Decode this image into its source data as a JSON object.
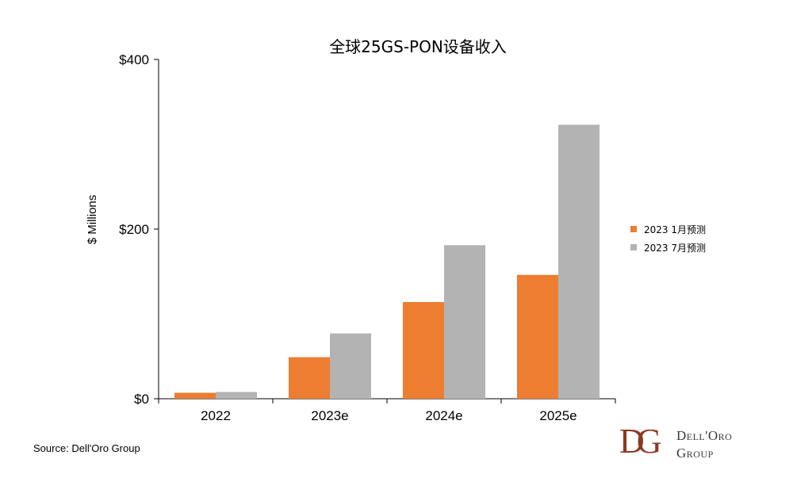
{
  "chart_data": {
    "type": "bar",
    "title": "全球25GS-PON设备收入",
    "ylabel": "$ Millions",
    "categories": [
      "2022",
      "2023e",
      "2024e",
      "2025e"
    ],
    "series": [
      {
        "name": "2023 1月预测",
        "color": "#ed7d31",
        "values": [
          7,
          49,
          114,
          146
        ]
      },
      {
        "name": "2023 7月预测",
        "color": "#b3b3b3",
        "values": [
          8,
          77,
          181,
          323
        ]
      }
    ],
    "ylim": [
      0,
      400
    ],
    "yticks": [
      0,
      200,
      400
    ],
    "ytick_labels": [
      "$0",
      "$200",
      "$400"
    ],
    "legend_position": "right",
    "grid": false
  },
  "footer": {
    "source": "Source: Dell'Oro Group"
  },
  "logo": {
    "monogram": "DG",
    "line1": "Dell'Oro",
    "line2": "Group",
    "color": "#8a3a22"
  }
}
